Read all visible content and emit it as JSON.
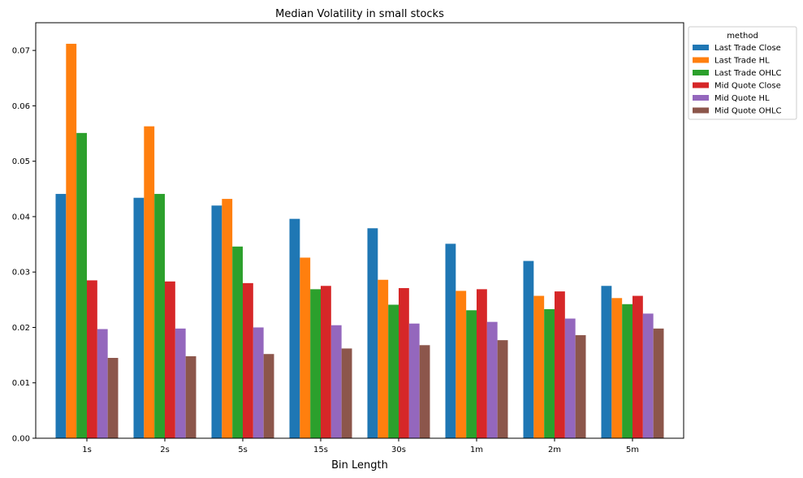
{
  "chart_data": {
    "type": "bar",
    "title": "Median Volatility in small stocks",
    "xlabel": "Bin Length",
    "ylabel": "",
    "ylim": [
      0,
      0.075
    ],
    "yticks": [
      "0.00",
      "0.01",
      "0.02",
      "0.03",
      "0.04",
      "0.05",
      "0.06",
      "0.07"
    ],
    "categories": [
      "1s",
      "2s",
      "5s",
      "15s",
      "30s",
      "1m",
      "2m",
      "5m"
    ],
    "legend": {
      "title": "method",
      "placement": "outside-top-right"
    },
    "grid": false,
    "series": [
      {
        "name": "Last Trade Close",
        "color": "#1f77b4",
        "values": [
          0.0441,
          0.0434,
          0.042,
          0.0396,
          0.0379,
          0.0351,
          0.032,
          0.0275
        ]
      },
      {
        "name": "Last Trade HL",
        "color": "#ff7f0e",
        "values": [
          0.0712,
          0.0563,
          0.0432,
          0.0326,
          0.0286,
          0.0266,
          0.0257,
          0.0253
        ]
      },
      {
        "name": "Last Trade OHLC",
        "color": "#2ca02c",
        "values": [
          0.0551,
          0.0441,
          0.0346,
          0.0269,
          0.0241,
          0.0231,
          0.0233,
          0.0242
        ]
      },
      {
        "name": "Mid Quote Close",
        "color": "#d62728",
        "values": [
          0.0285,
          0.0283,
          0.028,
          0.0275,
          0.0271,
          0.0269,
          0.0265,
          0.0257
        ]
      },
      {
        "name": "Mid Quote HL",
        "color": "#9467bd",
        "values": [
          0.0197,
          0.0198,
          0.02,
          0.0204,
          0.0207,
          0.021,
          0.0216,
          0.0225
        ]
      },
      {
        "name": "Mid Quote OHLC",
        "color": "#8c564b",
        "values": [
          0.0145,
          0.0148,
          0.0152,
          0.0162,
          0.0168,
          0.0177,
          0.0186,
          0.0198
        ]
      }
    ]
  }
}
